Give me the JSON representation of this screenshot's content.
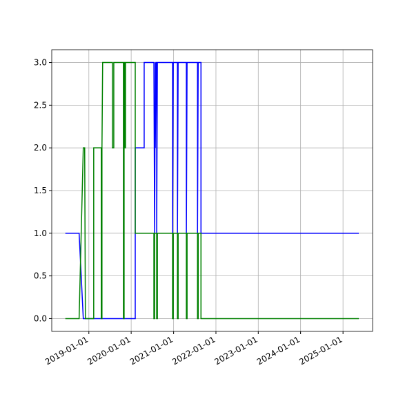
{
  "chart_data": {
    "type": "line",
    "xlim": [
      "2018-02-15",
      "2025-09-13"
    ],
    "xticks": [
      "2019-01-01",
      "2020-01-01",
      "2021-01-01",
      "2022-01-01",
      "2023-01-01",
      "2024-01-01",
      "2025-01-01"
    ],
    "ylim": [
      -0.15,
      3.15
    ],
    "yticks": [
      {
        "value": 0,
        "label": "0.0"
      },
      0.5,
      {
        "value": 1,
        "label": "1.0"
      },
      1.5,
      {
        "value": 2,
        "label": "2.0"
      },
      2.5,
      {
        "value": 3,
        "label": "3.0"
      }
    ],
    "grid": true,
    "series": [
      {
        "color": "#0000ff",
        "x": [
          "2018-06-12",
          "2018-10-09",
          "2018-11-14",
          "2020-02-05",
          "2020-02-05",
          "2020-04-22",
          "2020-04-22",
          "2020-07-15",
          "2020-07-21",
          "2020-07-27",
          "2020-07-27",
          "2020-08-02",
          "2020-08-08",
          "2020-08-08",
          "2020-08-14",
          "2020-12-23",
          "2020-12-23",
          "2020-12-29",
          "2021-02-03",
          "2021-02-03",
          "2021-02-09",
          "2021-04-21",
          "2021-04-21",
          "2021-04-27",
          "2021-07-26",
          "2021-07-26",
          "2021-08-01",
          "2021-08-25",
          "2021-08-25",
          "2025-05-17"
        ],
        "values": [
          1,
          1,
          0,
          0,
          2,
          2,
          3,
          3,
          1,
          3,
          2,
          3,
          3,
          1,
          3,
          3,
          1,
          3,
          3,
          1,
          3,
          3,
          1,
          3,
          3,
          1,
          3,
          3,
          1,
          1
        ]
      },
      {
        "color": "#008000",
        "x": [
          "2018-06-12",
          "2018-10-09",
          "2018-11-14",
          "2018-11-26",
          "2018-12-02",
          "2019-02-12",
          "2019-02-12",
          "2019-04-18",
          "2019-04-18",
          "2019-04-24",
          "2019-04-24",
          "2019-04-30",
          "2019-07-23",
          "2019-07-23",
          "2019-08-04",
          "2019-08-04",
          "2019-10-26",
          "2019-10-26",
          "2019-11-01",
          "2019-11-01",
          "2019-11-07",
          "2019-11-07",
          "2019-11-13",
          "2019-11-13",
          "2020-02-05",
          "2020-02-05",
          "2020-07-15",
          "2020-07-15",
          "2020-07-21",
          "2020-07-21",
          "2020-08-08",
          "2020-08-08",
          "2020-08-14",
          "2020-08-14",
          "2020-12-23",
          "2020-12-23",
          "2020-12-29",
          "2020-12-29",
          "2021-02-03",
          "2021-02-03",
          "2021-02-09",
          "2021-02-09",
          "2021-04-21",
          "2021-04-21",
          "2021-04-27",
          "2021-04-27",
          "2021-07-26",
          "2021-07-26",
          "2021-08-01",
          "2021-08-01",
          "2021-08-25",
          "2021-08-25",
          "2025-05-17"
        ],
        "values": [
          0,
          0,
          2,
          2,
          0,
          0,
          2,
          2,
          0,
          0,
          2,
          3,
          3,
          2,
          2,
          3,
          3,
          0,
          0,
          3,
          3,
          2,
          2,
          3,
          3,
          1,
          1,
          0,
          0,
          1,
          1,
          0,
          0,
          1,
          1,
          0,
          0,
          1,
          1,
          0,
          0,
          1,
          1,
          0,
          0,
          1,
          1,
          0,
          0,
          1,
          1,
          0,
          0
        ]
      }
    ]
  }
}
